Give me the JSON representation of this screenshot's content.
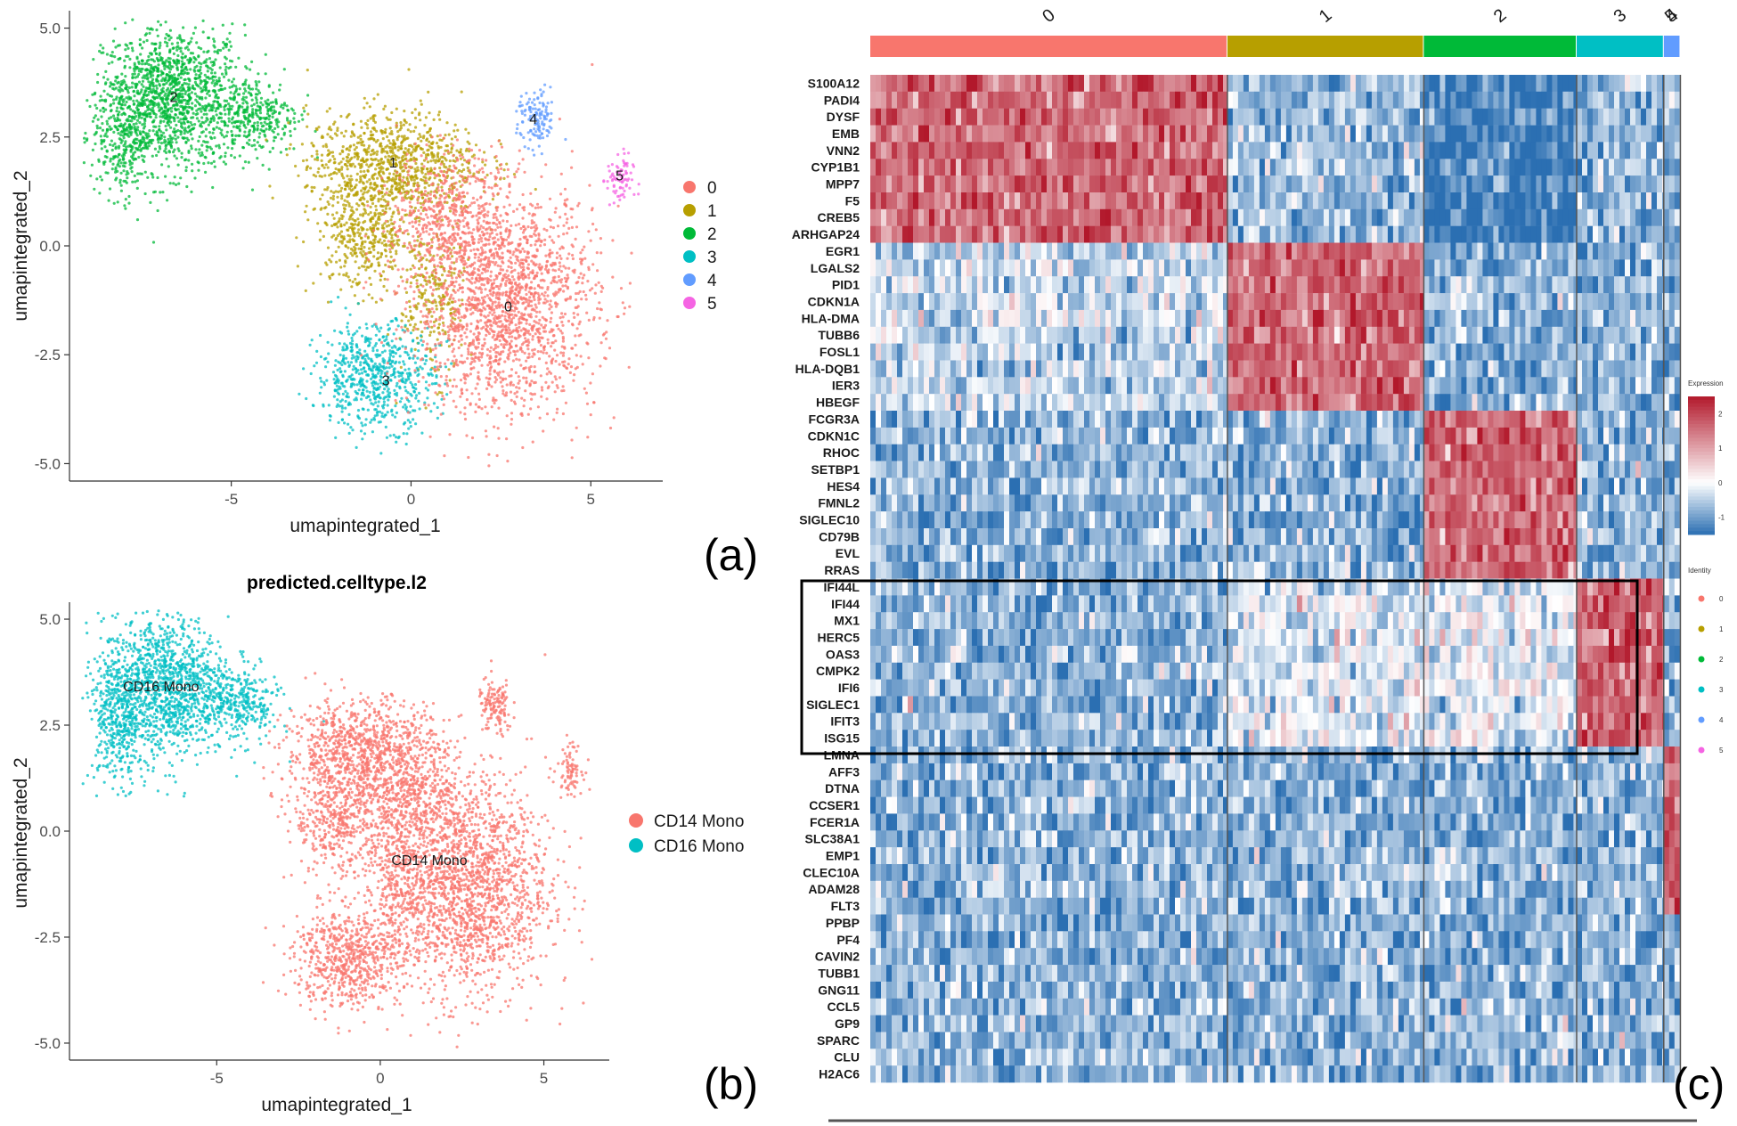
{
  "panel_labels": [
    "(a)",
    "(b)",
    "(c)"
  ],
  "chart_data": [
    {
      "type": "scatter",
      "panel": "(a)",
      "title": "",
      "xlabel": "umapintegrated_1",
      "ylabel": "umapintegrated_2",
      "xticks": [
        "-5",
        "0",
        "5"
      ],
      "yticks": [
        "5.0",
        "2.5",
        "0.0",
        "-2.5",
        "-5.0"
      ],
      "xlim": [
        -9.5,
        7.0
      ],
      "ylim": [
        -5.4,
        5.4
      ],
      "legend_position": "right",
      "series": [
        {
          "name": "0",
          "color": "#F8766D",
          "center": [
            2.7,
            -1.5
          ],
          "label_pos": [
            2.7,
            -1.5
          ]
        },
        {
          "name": "1",
          "color": "#B79F00",
          "center": [
            -0.5,
            1.8
          ],
          "label_pos": [
            -0.5,
            1.8
          ]
        },
        {
          "name": "2",
          "color": "#00BA38",
          "center": [
            -6.5,
            3.2
          ],
          "label_pos": [
            -6.6,
            3.3
          ]
        },
        {
          "name": "3",
          "color": "#00BFC4",
          "center": [
            -0.8,
            -3.2
          ],
          "label_pos": [
            -0.7,
            -3.2
          ]
        },
        {
          "name": "4",
          "color": "#619CFF",
          "center": [
            3.4,
            2.8
          ],
          "label_pos": [
            3.4,
            2.8
          ]
        },
        {
          "name": "5",
          "color": "#F564E3",
          "center": [
            5.8,
            1.5
          ],
          "label_pos": [
            5.8,
            1.5
          ]
        }
      ]
    },
    {
      "type": "scatter",
      "panel": "(b)",
      "title": "predicted.celltype.l2",
      "xlabel": "umapintegrated_1",
      "ylabel": "umapintegrated_2",
      "xticks": [
        "-5",
        "0",
        "5"
      ],
      "yticks": [
        "5.0",
        "2.5",
        "0.0",
        "-2.5",
        "-5.0"
      ],
      "xlim": [
        -9.5,
        7.0
      ],
      "ylim": [
        -5.4,
        5.4
      ],
      "legend_position": "right",
      "series": [
        {
          "name": "CD14 Mono",
          "color": "#F8766D",
          "label_pos": [
            1.5,
            -0.8
          ]
        },
        {
          "name": "CD16 Mono",
          "color": "#00BFC4",
          "label_pos": [
            -6.7,
            3.3
          ]
        }
      ]
    },
    {
      "type": "heatmap",
      "panel": "(c)",
      "columns": [
        "0",
        "1",
        "2",
        "3",
        "4",
        "5"
      ],
      "column_colors": [
        "#F8766D",
        "#B79F00",
        "#00BA38",
        "#00BFC4",
        "#619CFF",
        "#F564E3"
      ],
      "column_widths": [
        0.451,
        0.248,
        0.193,
        0.11,
        0.021,
        0.013
      ],
      "rows": [
        "S100A12",
        "PADI4",
        "DYSF",
        "EMB",
        "VNN2",
        "CYP1B1",
        "MPP7",
        "F5",
        "CREB5",
        "ARHGAP24",
        "EGR1",
        "LGALS2",
        "PID1",
        "CDKN1A",
        "HLA-DMA",
        "TUBB6",
        "FOSL1",
        "HLA-DQB1",
        "IER3",
        "HBEGF",
        "FCGR3A",
        "CDKN1C",
        "RHOC",
        "SETBP1",
        "HES4",
        "FMNL2",
        "SIGLEC10",
        "CD79B",
        "EVL",
        "RRAS",
        "IFI44L",
        "IFI44",
        "MX1",
        "HERC5",
        "OAS3",
        "CMPK2",
        "IFI6",
        "SIGLEC1",
        "IFIT3",
        "ISG15",
        "LMNA",
        "AFF3",
        "DTNA",
        "CCSER1",
        "FCER1A",
        "SLC38A1",
        "EMP1",
        "CLEC10A",
        "ADAM28",
        "FLT3",
        "PPBP",
        "PF4",
        "CAVIN2",
        "TUBB1",
        "GNG11",
        "CCL5",
        "GP9",
        "SPARC",
        "CLU",
        "H2AC6"
      ],
      "row_groups": [
        [
          0,
          9,
          0
        ],
        [
          10,
          19,
          1
        ],
        [
          20,
          29,
          2
        ],
        [
          30,
          39,
          3
        ],
        [
          40,
          49,
          4
        ],
        [
          50,
          59,
          5
        ]
      ],
      "highlight_rows": [
        "IFI44L",
        "ISG15"
      ],
      "colorbar": {
        "title": "Expression",
        "ticks": [
          "2",
          "1",
          "0",
          "-1"
        ],
        "range": [
          -1.5,
          2.5
        ]
      },
      "identity_legend": {
        "title": "Identity",
        "items": [
          "0",
          "1",
          "2",
          "3",
          "4",
          "5"
        ]
      }
    }
  ]
}
